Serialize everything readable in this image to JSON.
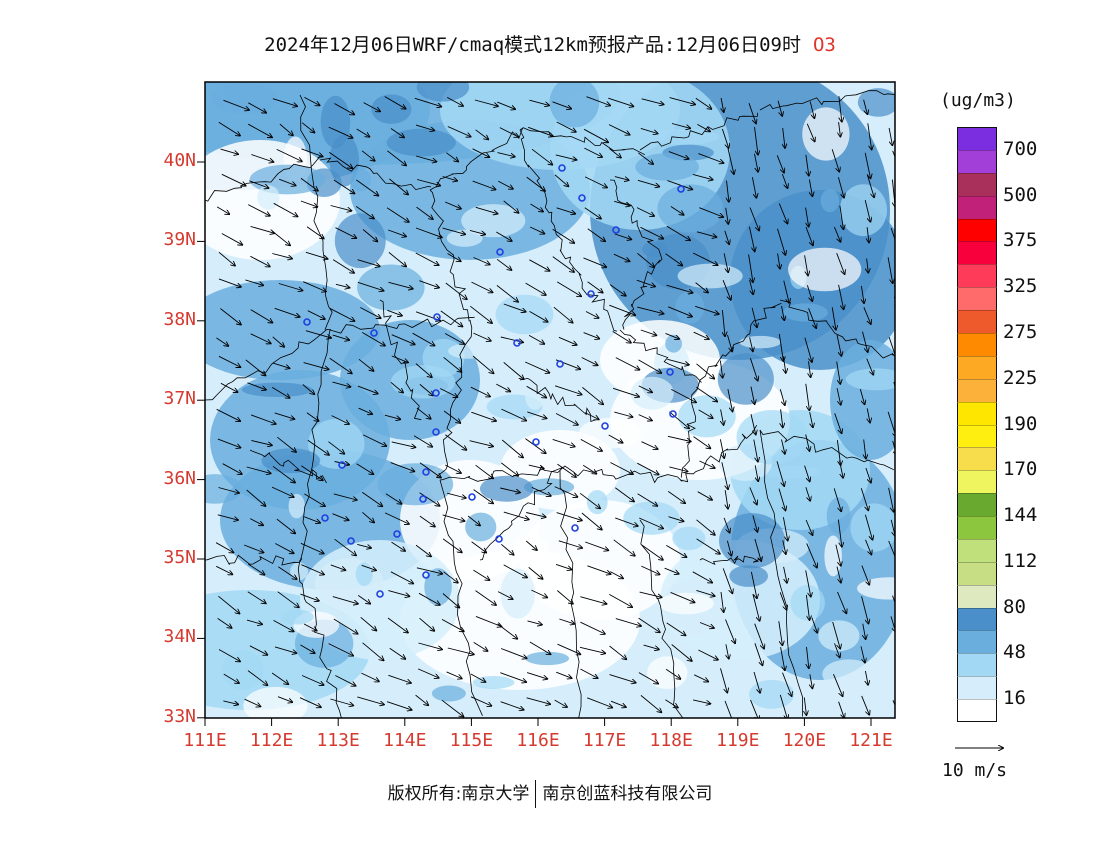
{
  "title": {
    "main": "2024年12月06日WRF/cmaq模式12km预报产品:12月06日09时",
    "species": "O3"
  },
  "map": {
    "lat_labels": [
      "40N",
      "39N",
      "38N",
      "37N",
      "36N",
      "35N",
      "34N",
      "33N"
    ],
    "lon_labels": [
      "111E",
      "112E",
      "113E",
      "114E",
      "115E",
      "116E",
      "117E",
      "118E",
      "119E",
      "120E",
      "121E"
    ],
    "field_colors": [
      "#ffffff",
      "#d6eefb",
      "#a3d8f5",
      "#6aaede",
      "#4a8fc9"
    ],
    "station_marker_color": "#1f3fe0"
  },
  "legend": {
    "unit": "(ug/m3)",
    "labels": [
      "700",
      "500",
      "375",
      "325",
      "275",
      "225",
      "190",
      "170",
      "144",
      "112",
      "80",
      "48",
      "16"
    ],
    "colors": [
      "#7a2ee0",
      "#a23fd8",
      "#a8305a",
      "#c2217a",
      "#ff0000",
      "#f8003c",
      "#ff3b5a",
      "#ff6b6b",
      "#ee5a2c",
      "#fd8a00",
      "#fda923",
      "#fcb23a",
      "#ffe600",
      "#ffef10",
      "#f7dc4c",
      "#eef55f",
      "#6aa930",
      "#8cc63e",
      "#bfe07a",
      "#c8de84",
      "#dfe9c0",
      "#4a8fc9",
      "#6aaede",
      "#a3d8f5",
      "#d6eefb",
      "#ffffff"
    ]
  },
  "wind_scale": {
    "label": "10 m/s"
  },
  "footer": {
    "left": "版权所有:南京大学",
    "right": "南京创蓝科技有限公司"
  }
}
